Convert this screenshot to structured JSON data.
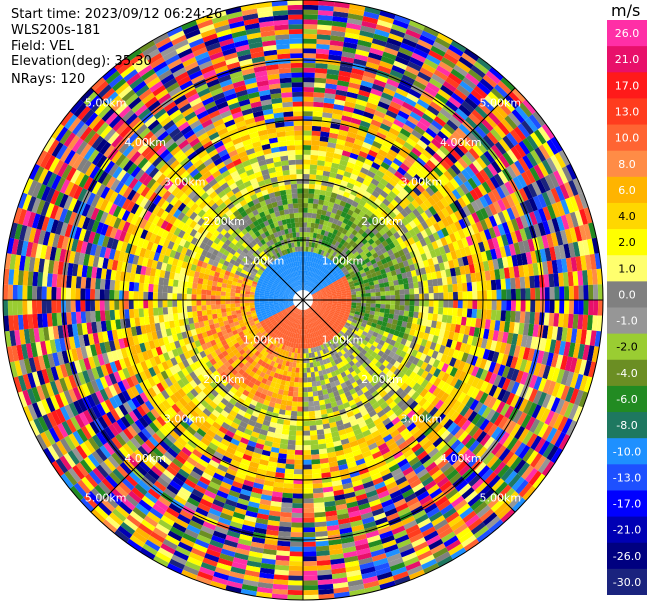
{
  "header": {
    "start_time": "Start time: 2023/09/12 06:24:26",
    "instrument": "WLS200s-181",
    "field": "Field: VEL",
    "elevation": "Elevation(deg): 35.30",
    "nrays": "NRays: 120"
  },
  "range_labels": [
    "1.00km",
    "2.00km",
    "3.00km",
    "4.00km",
    "5.00km"
  ],
  "colorbar": {
    "unit": "m/s",
    "ticks": [
      "26.0",
      "21.0",
      "17.0",
      "13.0",
      "10.0",
      "8.0",
      "6.0",
      "4.0",
      "2.0",
      "1.0",
      "0.0",
      "-1.0",
      "-2.0",
      "-4.0",
      "-6.0",
      "-8.0",
      "-10.0",
      "-13.0",
      "-17.0",
      "-21.0",
      "-26.0",
      "-30.0"
    ],
    "colors": [
      "#ff2fa6",
      "#e8106a",
      "#ff1a1a",
      "#ff3c1e",
      "#ff6432",
      "#ff8c46",
      "#ffb400",
      "#ffd700",
      "#ffff00",
      "#ffff6e",
      "#808080",
      "#969696",
      "#9acd32",
      "#6b8e23",
      "#228b22",
      "#1e7860",
      "#1e90ff",
      "#1e50ff",
      "#0000ff",
      "#0000b4",
      "#000080",
      "#1a237e"
    ]
  }
}
